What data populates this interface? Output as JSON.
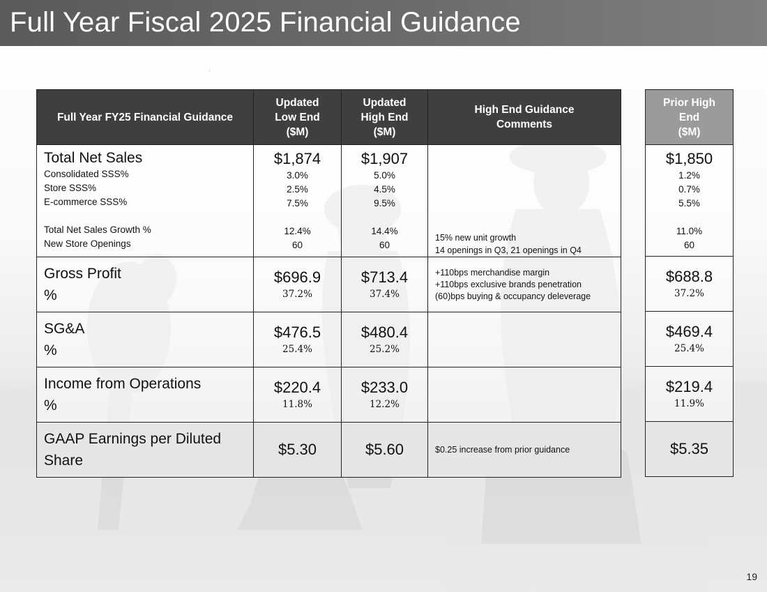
{
  "slide": {
    "title": "Full Year Fiscal 2025 Financial Guidance",
    "page_number": "19"
  },
  "table": {
    "headers": {
      "metric": "Full Year FY25 Financial Guidance",
      "low": [
        "Updated",
        "Low End",
        "($M)"
      ],
      "high": [
        "Updated",
        "High End",
        "($M)"
      ],
      "comments": [
        "High End Guidance",
        "Comments"
      ],
      "prior": [
        "Prior High",
        "End",
        "($M)"
      ]
    },
    "net_sales": {
      "label": "Total Net Sales",
      "sub_labels": [
        "Consolidated SSS%",
        "Store SSS%",
        "E-commerce SSS%"
      ],
      "growth_label": "Total Net Sales Growth %",
      "openings_label": "New Store Openings",
      "low": {
        "main": "$1,874",
        "sub": [
          "3.0%",
          "2.5%",
          "7.5%"
        ],
        "growth": "12.4%",
        "openings": "60"
      },
      "high": {
        "main": "$1,907",
        "sub": [
          "5.0%",
          "4.5%",
          "9.5%"
        ],
        "growth": "14.4%",
        "openings": "60"
      },
      "comments": [
        "15% new unit growth",
        "14 openings in Q3, 21 openings in Q4"
      ],
      "prior": {
        "main": "$1,850",
        "sub": [
          "1.2%",
          "0.7%",
          "5.5%"
        ],
        "growth": "11.0%",
        "openings": "60"
      }
    },
    "gross_profit": {
      "label": "Gross Profit",
      "pct_label": "%",
      "low": {
        "main": "$696.9",
        "pct": "37.2%"
      },
      "high": {
        "main": "$713.4",
        "pct": "37.4%"
      },
      "comments": [
        "+110bps merchandise margin",
        "+110bps exclusive brands penetration",
        "(60)bps buying & occupancy deleverage"
      ],
      "prior": {
        "main": "$688.8",
        "pct": "37.2%"
      }
    },
    "sga": {
      "label": "SG&A",
      "pct_label": "%",
      "low": {
        "main": "$476.5",
        "pct": "25.4%"
      },
      "high": {
        "main": "$480.4",
        "pct": "25.2%"
      },
      "prior": {
        "main": "$469.4",
        "pct": "25.4%"
      }
    },
    "income": {
      "label": "Income from Operations",
      "pct_label": "%",
      "low": {
        "main": "$220.4",
        "pct": "11.8%"
      },
      "high": {
        "main": "$233.0",
        "pct": "12.2%"
      },
      "prior": {
        "main": "$219.4",
        "pct": "11.9%"
      }
    },
    "eps": {
      "label": [
        "GAAP Earnings per Diluted",
        "Share"
      ],
      "low": "$5.30",
      "high": "$5.60",
      "comment": "$0.25 increase from prior guidance",
      "prior": "$5.35"
    }
  }
}
